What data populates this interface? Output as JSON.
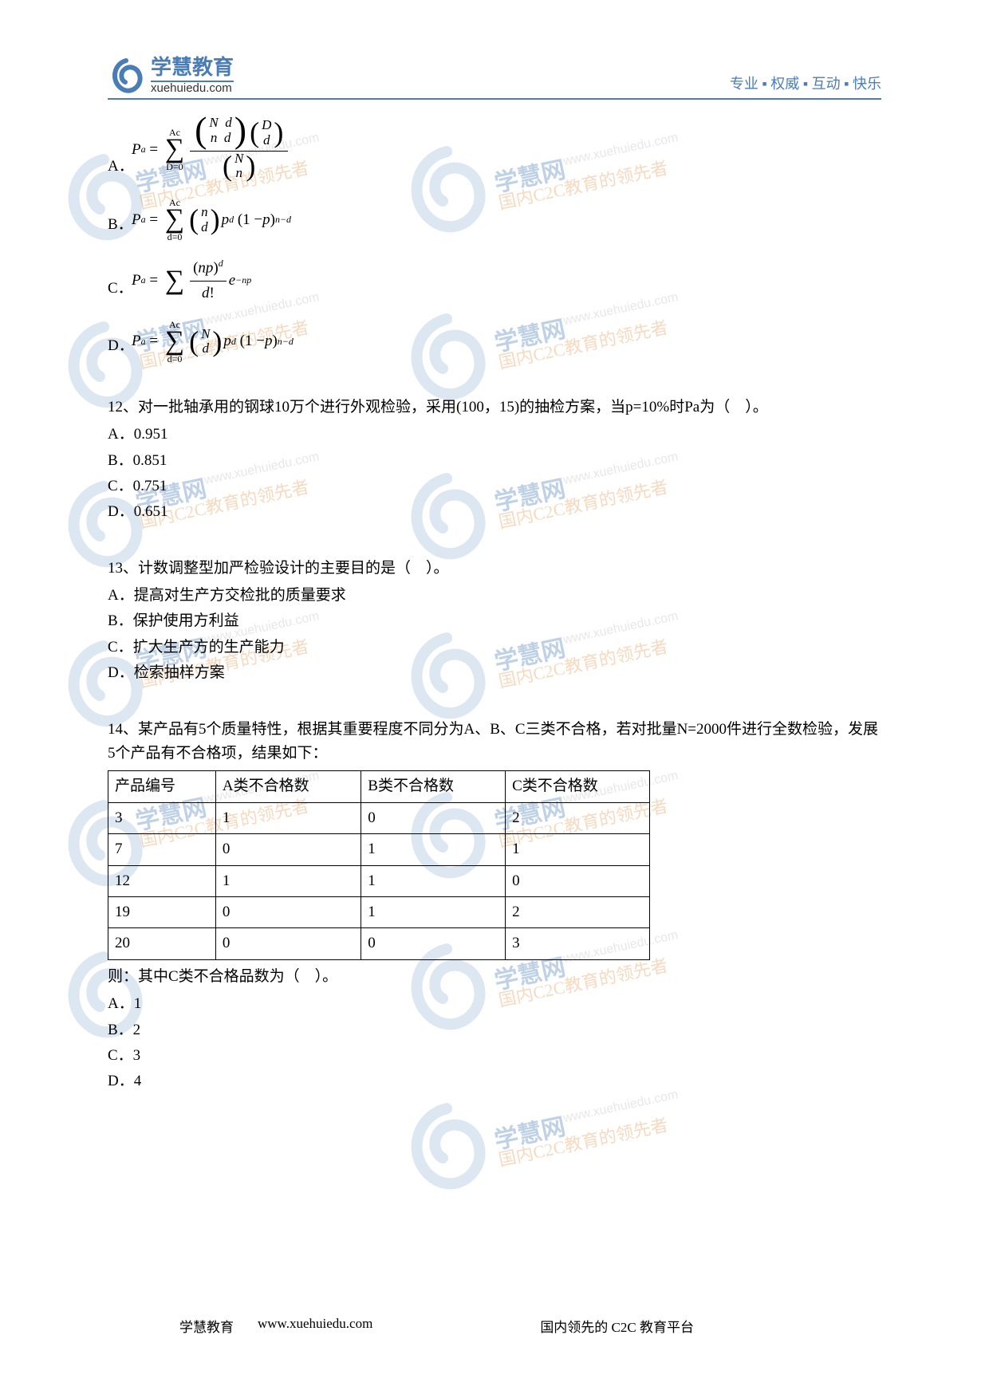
{
  "header": {
    "logo_cn": "学慧教育",
    "logo_en": "xuehuiedu.com",
    "tagline": "专业 ▪ 权威 ▪ 互动 ▪ 快乐"
  },
  "formulas": {
    "a_label": "A．",
    "b_label": "B．",
    "c_label": "C．",
    "d_label": "D．"
  },
  "q12": {
    "text": "12、对一批轴承用的钢球10万个进行外观检验，采用(100，15)的抽检方案，当p=10%时Pa为（　）。",
    "a": "A．0.951",
    "b": "B．0.851",
    "c": "C．0.751",
    "d": "D．0.651"
  },
  "q13": {
    "text": "13、计数调整型加严检验设计的主要目的是（　）。",
    "a": "A．提高对生产方交检批的质量要求",
    "b": "B．保护使用方利益",
    "c": "C．扩大生产方的生产能力",
    "d": "D．检索抽样方案"
  },
  "q14": {
    "text": "14、某产品有5个质量特性，根据其重要程度不同分为A、B、C三类不合格，若对批量N=2000件进行全数检验，发展5个产品有不合格项，结果如下：",
    "post": "则：其中C类不合格品数为（　）。",
    "a": "A．1",
    "b": "B．2",
    "c": "C．3",
    "d": "D．4",
    "table": {
      "headers": [
        "产品编号",
        "A类不合格数",
        "B类不合格数",
        "C类不合格数"
      ],
      "rows": [
        [
          "3",
          "1",
          "0",
          "2"
        ],
        [
          "7",
          "0",
          "1",
          "1"
        ],
        [
          "12",
          "1",
          "1",
          "0"
        ],
        [
          "19",
          "0",
          "1",
          "2"
        ],
        [
          "20",
          "0",
          "0",
          "3"
        ]
      ]
    }
  },
  "footer": {
    "left": "学慧教育",
    "mid": "www.xuehuiedu.com",
    "right": "国内领先的 C2C 教育平台"
  },
  "watermark": {
    "brand": "学慧网",
    "url": "www.xuehuiedu.com",
    "slogan": "国内C2C教育的领先者"
  },
  "colors": {
    "brand_blue": "#4a7db8",
    "wm_orange": "#e8944a",
    "text": "#000000",
    "bg": "#ffffff"
  }
}
